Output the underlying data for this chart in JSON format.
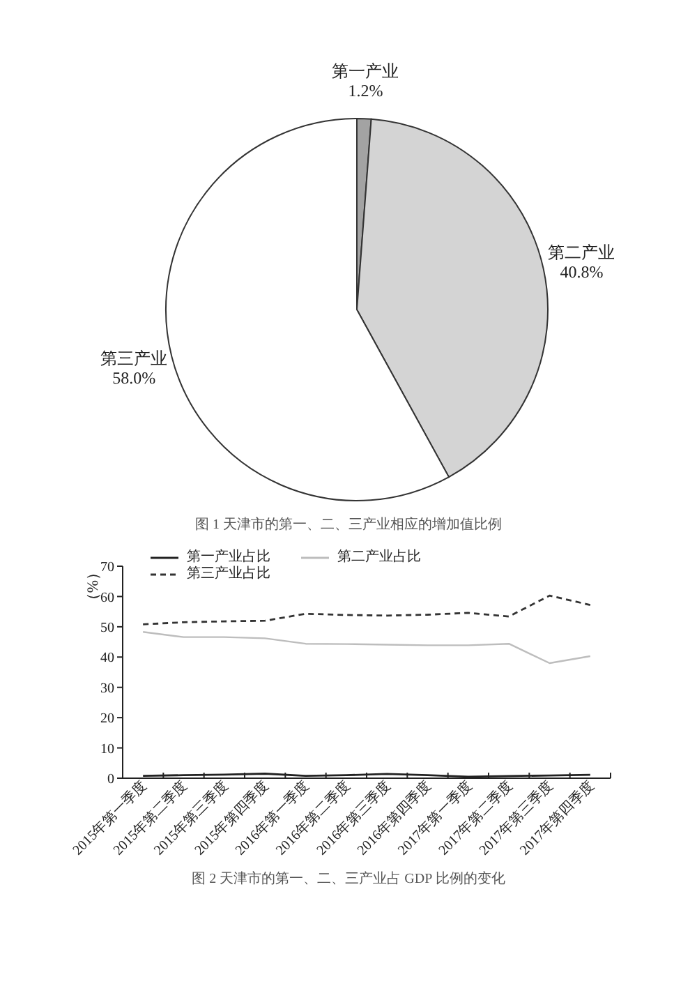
{
  "chart_data": [
    {
      "type": "pie",
      "categories": [
        "第一产业",
        "第二产业",
        "第三产业"
      ],
      "values": [
        1.2,
        40.8,
        58.0
      ],
      "colors": [
        "#a3a3a3",
        "#d4d4d4",
        "#ffffff"
      ],
      "value_labels": [
        "1.2%",
        "40.8%",
        "58.0%"
      ],
      "annotations": [
        "图 1 天津市的第一、二、三产业相应的增加值比例"
      ]
    },
    {
      "type": "line",
      "categories": [
        "2015年第一季度",
        "2015年第二季度",
        "2015年第三季度",
        "2015年第四季度",
        "2016年第一季度",
        "2016年第二季度",
        "2016年第三季度",
        "2016年第四季度",
        "2017年第一季度",
        "2017年第二季度",
        "2017年第三季度",
        "2017年第四季度"
      ],
      "series": [
        {
          "name": "第一产业占比",
          "color": "#222222",
          "values": [
            0.8,
            1.0,
            1.2,
            1.5,
            0.8,
            1.0,
            1.4,
            1.0,
            0.5,
            0.7,
            0.9,
            1.1
          ]
        },
        {
          "name": "第二产业占比",
          "color": "#bdbdbd",
          "values": [
            48.3,
            46.6,
            46.6,
            46.2,
            44.4,
            44.3,
            44.1,
            43.9,
            43.9,
            44.4,
            38.0,
            40.3
          ]
        },
        {
          "name": "第三产业占比",
          "color": "#333333",
          "line_style": "dashed",
          "values": [
            50.8,
            51.5,
            51.8,
            52.0,
            54.3,
            53.9,
            53.7,
            54.0,
            54.6,
            53.4,
            60.3,
            57.2
          ]
        }
      ],
      "ylabel": "（%）",
      "ylim": [
        0,
        70
      ],
      "yticks": [
        0,
        10,
        20,
        30,
        40,
        50,
        60,
        70
      ],
      "legend": "top left",
      "marker": "none",
      "line_style": "solid",
      "annotations": [
        "图 2 天津市的第一、二、三产业占 GDP 比例的变化"
      ]
    }
  ]
}
